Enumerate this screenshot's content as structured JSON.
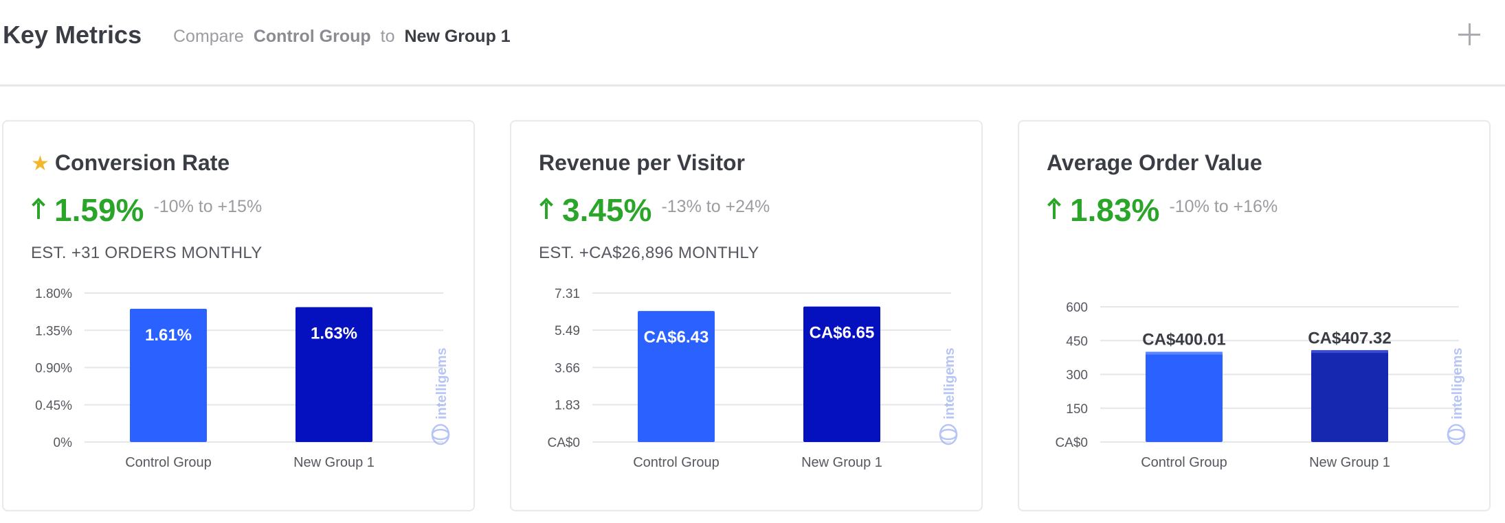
{
  "header": {
    "title": "Key Metrics",
    "compare_label": "Compare",
    "group_a": "Control Group",
    "to_label": "to",
    "group_b": "New Group 1",
    "add_icon": "plus-icon"
  },
  "cards": [
    {
      "title": "Conversion Rate",
      "starred": true,
      "lift": "1.59%",
      "range": "-10% to +15%",
      "estimate": "EST. +31 ORDERS MONTHLY",
      "watermark": "intelligems"
    },
    {
      "title": "Revenue per Visitor",
      "starred": false,
      "lift": "3.45%",
      "range": "-13% to +24%",
      "estimate": "EST. +CA$26,896 MONTHLY",
      "watermark": "intelligems"
    },
    {
      "title": "Average Order Value",
      "starred": false,
      "lift": "1.83%",
      "range": "-10% to +16%",
      "estimate": "",
      "watermark": "intelligems"
    }
  ],
  "colors": {
    "positive": "#2aa52a",
    "control_bar": "#2b62ff",
    "variant_bar": "#0510bf",
    "variant_bar_alt": "#1627b0",
    "star": "#f2b72c"
  },
  "chart_data": [
    {
      "type": "bar",
      "categories": [
        "Control Group",
        "New Group 1"
      ],
      "values": [
        1.61,
        1.63
      ],
      "value_labels": [
        "1.61%",
        "1.63%"
      ],
      "label_position": "inside",
      "ylim": [
        0,
        1.8
      ],
      "yticks": [
        0,
        0.45,
        0.9,
        1.35,
        1.8
      ],
      "ytick_labels": [
        "0%",
        "0.45%",
        "0.90%",
        "1.35%",
        "1.80%"
      ],
      "grid": true
    },
    {
      "type": "bar",
      "categories": [
        "Control Group",
        "New Group 1"
      ],
      "values": [
        6.43,
        6.65
      ],
      "value_labels": [
        "CA$6.43",
        "CA$6.65"
      ],
      "label_position": "inside",
      "ylim": [
        0,
        7.31
      ],
      "yticks": [
        0,
        1.83,
        3.66,
        5.49,
        7.31
      ],
      "ytick_labels": [
        "CA$0",
        "1.83",
        "3.66",
        "5.49",
        "7.31"
      ],
      "grid": true
    },
    {
      "type": "bar",
      "categories": [
        "Control Group",
        "New Group 1"
      ],
      "values": [
        400.01,
        407.32
      ],
      "value_labels": [
        "CA$400.01",
        "CA$407.32"
      ],
      "label_position": "above",
      "ylim": [
        0,
        600
      ],
      "yticks": [
        0,
        150,
        300,
        450,
        600
      ],
      "ytick_labels": [
        "CA$0",
        "150",
        "300",
        "450",
        "600"
      ],
      "grid": true
    }
  ]
}
